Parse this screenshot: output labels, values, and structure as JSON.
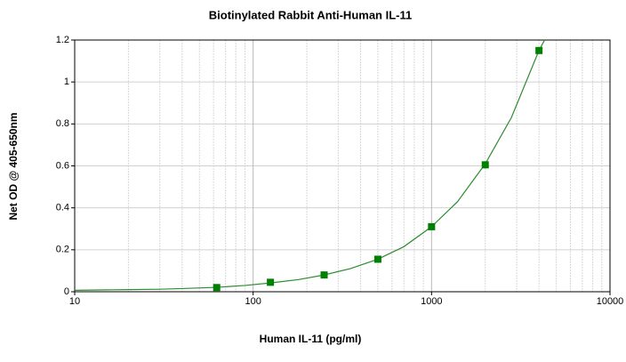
{
  "chart_data": {
    "type": "scatter",
    "title": "Biotinylated Rabbit Anti-Human IL-11",
    "x_label": "Human IL-11 (pg/ml)",
    "y_label": "Net OD @ 405-650nm",
    "x": [
      62.5,
      125,
      250,
      500,
      1000,
      2000,
      4000
    ],
    "series": [
      {
        "color": "#008000",
        "values": [
          0.02,
          0.045,
          0.08,
          0.155,
          0.31,
          0.605,
          1.15
        ]
      }
    ],
    "curve": {
      "color": "#2e8b2e",
      "x": [
        10,
        15,
        20,
        30,
        40,
        62.5,
        90,
        125,
        180,
        250,
        350,
        500,
        700,
        1000,
        1400,
        2000,
        2800,
        4000,
        4300
      ],
      "values": [
        0.007,
        0.009,
        0.01,
        0.012,
        0.015,
        0.021,
        0.03,
        0.042,
        0.058,
        0.08,
        0.11,
        0.155,
        0.215,
        0.31,
        0.43,
        0.61,
        0.83,
        1.15,
        1.2
      ]
    },
    "xlim": [
      10,
      10000
    ],
    "xticks": [
      10,
      100,
      1000,
      10000
    ],
    "xlog": true,
    "ylim": [
      0,
      1.2
    ],
    "yticks": [
      0,
      0.2,
      0.4,
      0.6,
      0.8,
      1,
      1.2
    ],
    "grid": true,
    "minor_grid": true
  }
}
